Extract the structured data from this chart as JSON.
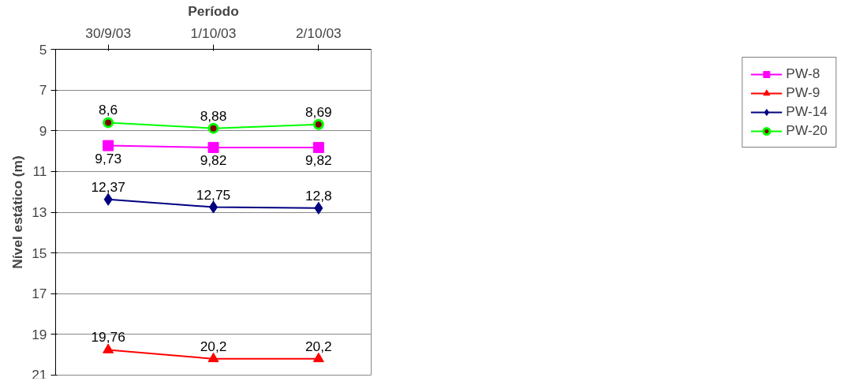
{
  "chart_data": {
    "type": "line",
    "xlabel": "Período",
    "ylabel": "Nível estático (m)",
    "categories": [
      "30/9/03",
      "1/10/03",
      "2/10/03"
    ],
    "series": [
      {
        "name": "PW-8",
        "color": "#ff00ff",
        "marker": "square",
        "values": [
          9.73,
          9.82,
          9.82
        ],
        "value_labels": [
          "9,73",
          "9,82",
          "9,82"
        ]
      },
      {
        "name": "PW-9",
        "color": "#ff0000",
        "marker": "triangle",
        "values": [
          19.76,
          20.2,
          20.2
        ],
        "value_labels": [
          "19,76",
          "20,2",
          "20,2"
        ]
      },
      {
        "name": "PW-14",
        "color": "#000080",
        "marker": "diamond",
        "values": [
          12.37,
          12.75,
          12.8
        ],
        "value_labels": [
          "12,37",
          "12,75",
          "12,8"
        ]
      },
      {
        "name": "PW-20",
        "color": "#00ff00",
        "marker": "circle",
        "values": [
          8.6,
          8.88,
          8.69
        ],
        "value_labels": [
          "8,6",
          "8,88",
          "8,69"
        ]
      }
    ],
    "ylim": [
      21,
      5
    ],
    "yticks": [
      5,
      7,
      9,
      11,
      13,
      15,
      17,
      19,
      21
    ],
    "grid": "y",
    "legend": "right"
  }
}
